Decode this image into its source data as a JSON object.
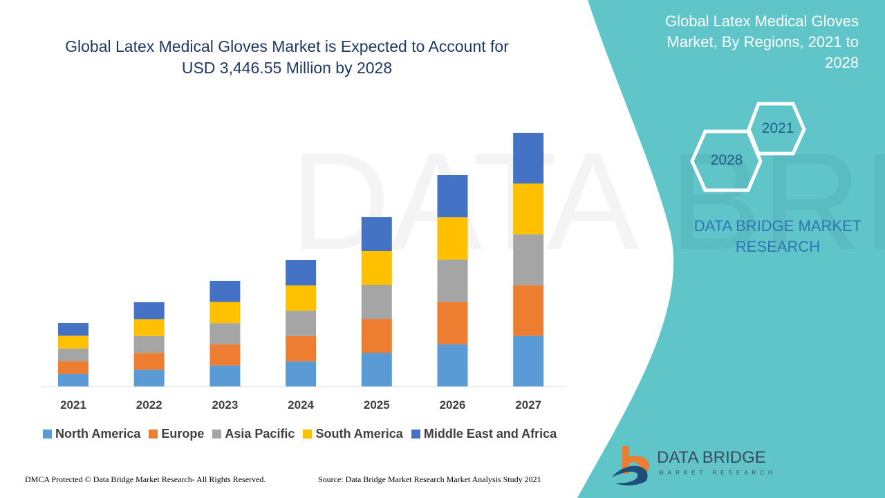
{
  "title": "Global Latex Medical Gloves Market is Expected to Account for USD 3,446.55 Million by 2028",
  "title_line1": "Global Latex Medical Gloves Market is Expected to Account for",
  "title_line2": "USD 3,446.55 Million by 2028",
  "side_title": "Global Latex Medical Gloves Market, By Regions, 2021 to 2028",
  "hex_labels": [
    "2021",
    "2028"
  ],
  "brand_text": "DATA BRIDGE MARKET RESEARCH",
  "logo": {
    "name": "DATA BRIDGE",
    "sub": "MARKET RESEARCH"
  },
  "footer": {
    "left": "DMCA Protected © Data Bridge Market Research- All Rights Reserved.",
    "right": "Source: Data Bridge Market Research Market Analysis Study 2021"
  },
  "colors": {
    "panel": "#5fc5c9",
    "title": "#1f3864"
  },
  "chart_data": {
    "type": "bar",
    "stacked": true,
    "title": "",
    "xlabel": "",
    "ylabel": "",
    "y_axis_shown": false,
    "grid": false,
    "legend_position": "bottom",
    "categories": [
      "2021",
      "2022",
      "2023",
      "2024",
      "2025",
      "2026",
      "2027"
    ],
    "series": [
      {
        "name": "North America",
        "color": "#5b9bd5",
        "values": [
          18.4,
          24.4,
          30.6,
          36.6,
          49,
          61.2,
          73.4
        ]
      },
      {
        "name": "Europe",
        "color": "#ed7d31",
        "values": [
          18.4,
          24.4,
          30.6,
          36.6,
          49,
          61.2,
          73.4
        ]
      },
      {
        "name": "Asia Pacific",
        "color": "#a5a5a5",
        "values": [
          18.4,
          24.4,
          30.6,
          36.6,
          49,
          61.2,
          73.4
        ]
      },
      {
        "name": "South America",
        "color": "#ffc000",
        "values": [
          18.4,
          24.4,
          30.6,
          36.6,
          49,
          61.2,
          73.4
        ]
      },
      {
        "name": "Middle East and Africa",
        "color": "#4472c4",
        "values": [
          18.4,
          24.4,
          30.6,
          36.6,
          49,
          61.2,
          73.4
        ]
      }
    ]
  }
}
